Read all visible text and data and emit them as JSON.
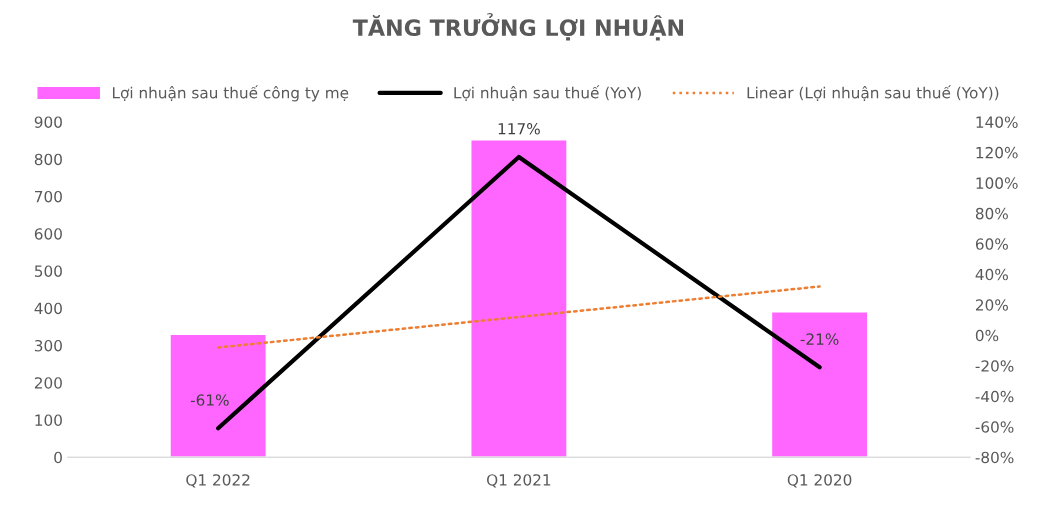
{
  "chart_data": {
    "type": "bar",
    "title": "TĂNG TRƯỞNG LỢI NHUẬN",
    "categories": [
      "Q1 2022",
      "Q1 2021",
      "Q1 2020"
    ],
    "series": [
      {
        "name": "Lợi nhuận sau thuế công ty mẹ",
        "color": "#ff66ff",
        "values": [
          330,
          852,
          390
        ]
      },
      {
        "name": "Lợi nhuận sau thuế (YoY)",
        "type": "line",
        "axis": "y2",
        "color": "#000000",
        "line_style": "solid",
        "values": [
          -61,
          117,
          -21
        ],
        "value_labels": [
          "-61%",
          "117%",
          "-21%"
        ]
      },
      {
        "name": "Linear (Lợi nhuận sau thuế (YoY))",
        "type": "line",
        "axis": "y2",
        "color": "#ed7d31",
        "line_style": "dotted",
        "values": [
          -8,
          12,
          32
        ]
      }
    ],
    "ylim": [
      0,
      900
    ],
    "yticks": [
      0,
      100,
      200,
      300,
      400,
      500,
      600,
      700,
      800,
      900
    ],
    "y2lim": [
      -80,
      140
    ],
    "y2ticks": [
      {
        "value": -80,
        "label": "-80%"
      },
      {
        "value": -60,
        "label": "-60%"
      },
      {
        "value": -40,
        "label": "-40%"
      },
      {
        "value": -20,
        "label": "-20%"
      },
      {
        "value": 0,
        "label": "0%"
      },
      {
        "value": 20,
        "label": "20%"
      },
      {
        "value": 40,
        "label": "40%"
      },
      {
        "value": 60,
        "label": "60%"
      },
      {
        "value": 80,
        "label": "80%"
      },
      {
        "value": 100,
        "label": "100%"
      },
      {
        "value": 120,
        "label": "120%"
      },
      {
        "value": 140,
        "label": "140%"
      }
    ],
    "grid": false,
    "legend": "top",
    "marker": "none"
  }
}
